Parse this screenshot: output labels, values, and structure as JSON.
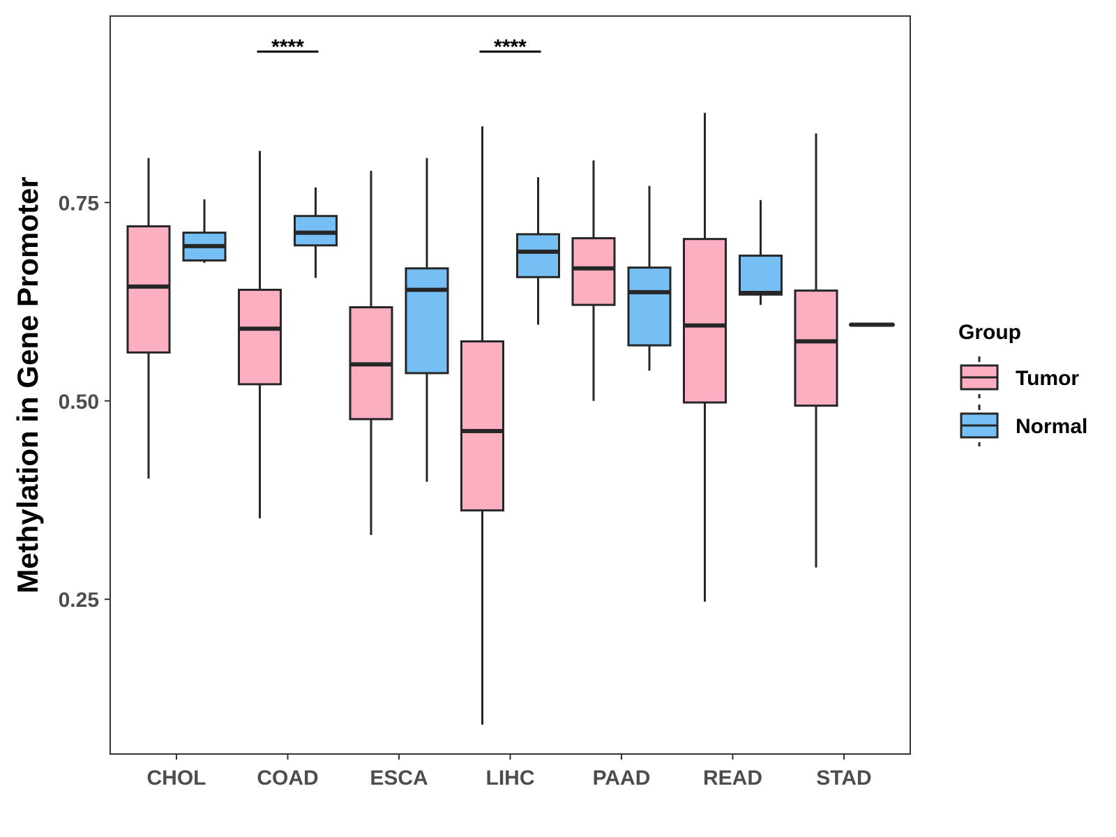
{
  "chart_data": {
    "type": "boxplot",
    "title": "",
    "xlabel": "",
    "ylabel": "Methylation in Gene Promoter",
    "ylim": [
      0.055,
      0.985
    ],
    "yticks": [
      0.25,
      0.5,
      0.75
    ],
    "ytick_labels": [
      "0.25",
      "0.50",
      "0.75"
    ],
    "categories": [
      "CHOL",
      "COAD",
      "ESCA",
      "LIHC",
      "PAAD",
      "READ",
      "STAD"
    ],
    "grid": false,
    "legend": {
      "title": "Group",
      "position": "right"
    },
    "series": [
      {
        "name": "Tumor",
        "color": "#FBAFC1",
        "boxes": [
          {
            "category": "CHOL",
            "min": 0.402,
            "q1": 0.561,
            "median": 0.644,
            "q3": 0.72,
            "max": 0.806
          },
          {
            "category": "COAD",
            "min": 0.352,
            "q1": 0.521,
            "median": 0.591,
            "q3": 0.64,
            "max": 0.815
          },
          {
            "category": "ESCA",
            "min": 0.331,
            "q1": 0.477,
            "median": 0.546,
            "q3": 0.618,
            "max": 0.79
          },
          {
            "category": "LIHC",
            "min": 0.092,
            "q1": 0.362,
            "median": 0.462,
            "q3": 0.575,
            "max": 0.846
          },
          {
            "category": "PAAD",
            "min": 0.5,
            "q1": 0.621,
            "median": 0.667,
            "q3": 0.705,
            "max": 0.803
          },
          {
            "category": "READ",
            "min": 0.247,
            "q1": 0.498,
            "median": 0.595,
            "q3": 0.704,
            "max": 0.863
          },
          {
            "category": "STAD",
            "min": 0.29,
            "q1": 0.494,
            "median": 0.575,
            "q3": 0.639,
            "max": 0.837
          }
        ]
      },
      {
        "name": "Normal",
        "color": "#75BFF5",
        "boxes": [
          {
            "category": "CHOL",
            "min": 0.674,
            "q1": 0.677,
            "median": 0.695,
            "q3": 0.712,
            "max": 0.754
          },
          {
            "category": "COAD",
            "min": 0.655,
            "q1": 0.696,
            "median": 0.712,
            "q3": 0.733,
            "max": 0.769
          },
          {
            "category": "ESCA",
            "min": 0.398,
            "q1": 0.535,
            "median": 0.64,
            "q3": 0.667,
            "max": 0.806
          },
          {
            "category": "LIHC",
            "min": 0.596,
            "q1": 0.656,
            "median": 0.688,
            "q3": 0.71,
            "max": 0.782
          },
          {
            "category": "PAAD",
            "min": 0.538,
            "q1": 0.57,
            "median": 0.637,
            "q3": 0.668,
            "max": 0.771
          },
          {
            "category": "READ",
            "min": 0.621,
            "q1": 0.634,
            "median": 0.636,
            "q3": 0.683,
            "max": 0.753
          },
          {
            "category": "STAD",
            "min": 0.596,
            "q1": 0.596,
            "median": 0.596,
            "q3": 0.596,
            "max": 0.596
          }
        ]
      }
    ],
    "significance": [
      {
        "category": "COAD",
        "label": "****"
      },
      {
        "category": "LIHC",
        "label": "****"
      }
    ]
  },
  "colors": {
    "tumor": "#FBAFC1",
    "normal": "#75BFF5",
    "outline": "#262626",
    "axis": "#333333"
  }
}
